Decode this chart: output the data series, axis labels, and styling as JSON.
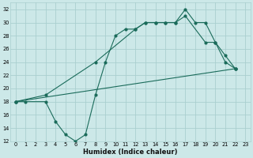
{
  "title": "",
  "xlabel": "Humidex (Indice chaleur)",
  "ylabel": "",
  "bg_color": "#cce8e8",
  "grid_color": "#aacfcf",
  "line_color": "#1a6b5a",
  "xlim": [
    -0.5,
    23.5
  ],
  "ylim": [
    12,
    33
  ],
  "xticks": [
    0,
    1,
    2,
    3,
    4,
    5,
    6,
    7,
    8,
    9,
    10,
    11,
    12,
    13,
    14,
    15,
    16,
    17,
    18,
    19,
    20,
    21,
    22,
    23
  ],
  "yticks": [
    12,
    14,
    16,
    18,
    20,
    22,
    24,
    26,
    28,
    30,
    32
  ],
  "line1_x": [
    0,
    1,
    3,
    4,
    5,
    6,
    7,
    8,
    9,
    10,
    11,
    12,
    13,
    14,
    15,
    16,
    17,
    18,
    19,
    20,
    21,
    22
  ],
  "line1_y": [
    18,
    18,
    18,
    15,
    13,
    12,
    13,
    19,
    24,
    28,
    29,
    29,
    30,
    30,
    30,
    30,
    32,
    30,
    30,
    27,
    25,
    23
  ],
  "line2_x": [
    0,
    3,
    8,
    12,
    13,
    14,
    15,
    16,
    17,
    19,
    20,
    21,
    22
  ],
  "line2_y": [
    18,
    19,
    24,
    29,
    30,
    30,
    30,
    30,
    31,
    27,
    27,
    24,
    23
  ],
  "line3_x": [
    0,
    22
  ],
  "line3_y": [
    18,
    23
  ]
}
